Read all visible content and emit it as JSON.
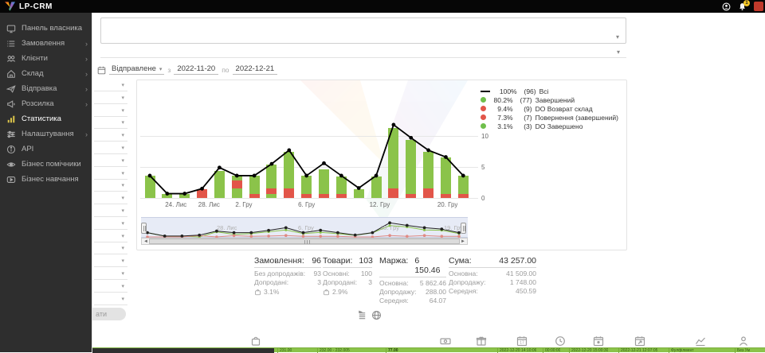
{
  "topbar": {
    "logo_text": "LP-CRM",
    "icons": [
      {
        "name": "user-circle-icon"
      },
      {
        "name": "bell-icon",
        "badge": "1"
      },
      {
        "name": "red-app-icon"
      }
    ]
  },
  "sidebar": {
    "items": [
      {
        "label": "Панель власника",
        "icon": "panel",
        "chevron": false,
        "active": false
      },
      {
        "label": "Замовлення",
        "icon": "orders",
        "chevron": true,
        "active": false
      },
      {
        "label": "Клієнти",
        "icon": "clients",
        "chevron": true,
        "active": false
      },
      {
        "label": "Склад",
        "icon": "warehouse",
        "chevron": true,
        "active": false
      },
      {
        "label": "Відправка",
        "icon": "shipping",
        "chevron": true,
        "active": false
      },
      {
        "label": "Розсилка",
        "icon": "broadcast",
        "chevron": true,
        "active": false
      },
      {
        "label": "Статистика",
        "icon": "stats",
        "chevron": false,
        "active": true
      },
      {
        "label": "Налаштування",
        "icon": "settings",
        "chevron": true,
        "active": false
      },
      {
        "label": "API",
        "icon": "api",
        "chevron": false,
        "active": false
      },
      {
        "label": "Бізнес помічники",
        "icon": "helpers",
        "chevron": false,
        "active": false
      },
      {
        "label": "Бізнес навчання",
        "icon": "training",
        "chevron": false,
        "active": false
      }
    ]
  },
  "filters": {
    "date_type_label": "Відправлене",
    "from_label": "з",
    "date_from": "2022-11-20",
    "to_label": "по",
    "date_to": "2022-12-21",
    "side_select_count": 18,
    "pill_button_label": "ати"
  },
  "chart_data": {
    "type": "bar",
    "title": "",
    "xlabel": "",
    "ylabel": "",
    "ylim": [
      0,
      12
    ],
    "y_ticks": [
      0,
      5,
      10
    ],
    "grid": true,
    "legend_position": "top-right",
    "colors": {
      "g": "#8bc34a",
      "r": "#e25549",
      "line": "#000000"
    },
    "legend": [
      {
        "swatch": "line",
        "color": "#000000",
        "percent": "100%",
        "count": "(96)",
        "label": "Всі"
      },
      {
        "swatch": "dot",
        "color": "#6fbf4b",
        "percent": "80.2%",
        "count": "(77)",
        "label": "Завершений"
      },
      {
        "swatch": "dot",
        "color": "#e25549",
        "percent": "9.4%",
        "count": "(9)",
        "label": "DO Возврат склад"
      },
      {
        "swatch": "dot",
        "color": "#e25549",
        "percent": "7.3%",
        "count": "(7)",
        "label": "Повернення (завершений)"
      },
      {
        "swatch": "dot",
        "color": "#6fbf4b",
        "percent": "3.1%",
        "count": "(3)",
        "label": "DO Завершено"
      }
    ],
    "line_series": {
      "name": "Всі",
      "values": [
        3.6,
        0.7,
        0.7,
        1.5,
        4.9,
        3.6,
        3.6,
        5.5,
        7.7,
        3.6,
        5.6,
        3.6,
        1.6,
        3.6,
        11.8,
        9.7,
        7.7,
        6.6,
        3.6
      ]
    },
    "bars": [
      [
        [
          "g",
          3.6
        ]
      ],
      [
        [
          "g",
          0.7
        ]
      ],
      [
        [
          "g",
          0.6
        ]
      ],
      [
        [
          "r",
          1.4
        ]
      ],
      [
        [
          "g",
          4.4
        ]
      ],
      [
        [
          "g",
          1.5
        ],
        [
          "r",
          1.3
        ],
        [
          "g",
          0.8
        ]
      ],
      [
        [
          "r",
          0.7
        ],
        [
          "g",
          2.9
        ]
      ],
      [
        [
          "g",
          0.6
        ],
        [
          "r",
          0.9
        ],
        [
          "g",
          3.9
        ]
      ],
      [
        [
          "r",
          1.5
        ],
        [
          "g",
          6.0
        ]
      ],
      [
        [
          "r",
          0.7
        ],
        [
          "g",
          2.9
        ]
      ],
      [
        [
          "r",
          0.7
        ],
        [
          "g",
          3.9
        ]
      ],
      [
        [
          "r",
          0.7
        ],
        [
          "g",
          2.8
        ]
      ],
      [
        [
          "g",
          1.4
        ]
      ],
      [
        [
          "g",
          3.5
        ]
      ],
      [
        [
          "r",
          1.5
        ],
        [
          "g",
          9.8
        ]
      ],
      [
        [
          "r",
          0.7
        ],
        [
          "g",
          8.7
        ]
      ],
      [
        [
          "r",
          1.5
        ],
        [
          "g",
          6.0
        ]
      ],
      [
        [
          "r",
          0.7
        ],
        [
          "g",
          5.8
        ]
      ],
      [
        [
          "r",
          0.7
        ],
        [
          "g",
          2.9
        ]
      ]
    ],
    "x_tick_labels": [
      {
        "label": "24. Лис",
        "slot": 1.5
      },
      {
        "label": "28. Лис",
        "slot": 3.4
      },
      {
        "label": "2. Гру",
        "slot": 5.4
      },
      {
        "label": "6. Гру",
        "slot": 9.0
      },
      {
        "label": "12. Гру",
        "slot": 13.2
      },
      {
        "label": "20. Гру",
        "slot": 17.1
      }
    ],
    "navigator_labels": [
      {
        "label": "28. Лис",
        "x": 95
      },
      {
        "label": "6. Гру",
        "x": 197
      },
      {
        "label": "13. Гру",
        "x": 300
      },
      {
        "label": "19. Гру",
        "x": 380
      }
    ]
  },
  "stats": {
    "columns": [
      {
        "title": "Замовлення:",
        "value": "96",
        "rows": [
          {
            "label": "Без допродажів:",
            "value": "93"
          },
          {
            "label": "Допродані:",
            "value": "3"
          }
        ],
        "footer": {
          "icon": "bag",
          "value": "3.1%"
        }
      },
      {
        "title": "Товари:",
        "value": "103",
        "rows": [
          {
            "label": "Основні:",
            "value": "100"
          },
          {
            "label": "Допродані:",
            "value": "3"
          }
        ],
        "footer": {
          "icon": "bag",
          "value": "2.9%"
        }
      },
      {
        "title": "Маржа:",
        "value": "6 150.46",
        "rows": [
          {
            "label": "Основна:",
            "value": "5 862.46"
          },
          {
            "label": "Допродажу:",
            "value": "288.00"
          },
          {
            "label": "Середня:",
            "value": "64.07"
          }
        ]
      },
      {
        "title": "Сума:",
        "value": "43 257.00",
        "rows": [
          {
            "label": "Основна:",
            "value": "41 509.00"
          },
          {
            "label": "Допродажу:",
            "value": "1 748.00"
          },
          {
            "label": "Середня:",
            "value": "450.59"
          }
        ]
      }
    ]
  },
  "mid_icons": [
    {
      "name": "list-flag-icon",
      "x": 332
    },
    {
      "name": "globe-icon",
      "x": 350
    }
  ],
  "bottom_icons": [
    {
      "name": "bag-icon",
      "x": 198
    },
    {
      "name": "banknote-icon",
      "x": 436
    },
    {
      "name": "giftbox-icon",
      "x": 481
    },
    {
      "name": "calendar-17-icon",
      "x": 532
    },
    {
      "name": "clock-icon",
      "x": 580
    },
    {
      "name": "calendar-icon",
      "x": 628
    },
    {
      "name": "calendar-export-icon",
      "x": 680
    },
    {
      "name": "chart-line-icon",
      "x": 756
    },
    {
      "name": "person-icon",
      "x": 810
    }
  ],
  "strip": {
    "cells": [
      {
        "text": "231.00",
        "x": 232,
        "bold": false
      },
      {
        "text": "232.00 - 232.005",
        "x": 282,
        "bold": false
      },
      {
        "text": "77.00",
        "x": 368,
        "bold": true
      },
      {
        "text": "2022-12-20 14:10:06",
        "x": 508,
        "bold": false
      },
      {
        "text": "00:00:00",
        "x": 565,
        "bold": false
      },
      {
        "text": "2022-12-20 15:00:30",
        "x": 598,
        "bold": false
      },
      {
        "text": "2022-12-21 12:07:05",
        "x": 660,
        "bold": false
      },
      {
        "text": "Фулфілмент",
        "x": 723,
        "bold": false
      },
      {
        "text": "Без Ум",
        "x": 806,
        "bold": false
      }
    ]
  }
}
